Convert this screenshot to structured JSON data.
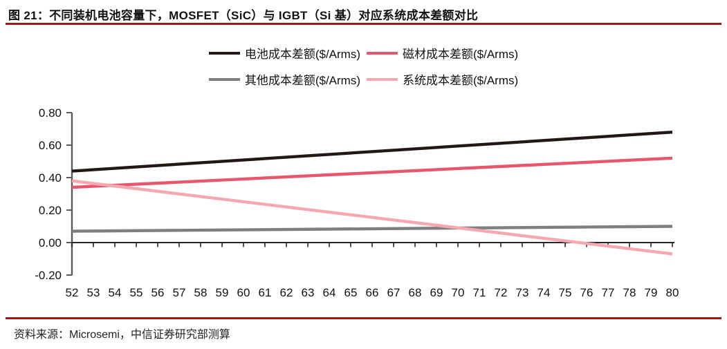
{
  "figure": {
    "title": "图 21：不同装机电池容量下，MOSFET（SiC）与 IGBT（Si 基）对应系统成本差额对比",
    "source": "资料来源：Microsemi，中信证券研究部测算"
  },
  "colors": {
    "rule": "#9c1a16",
    "axis_y": "#595959",
    "axis_x": "#262626",
    "tick_text": "#111111"
  },
  "chart_data": {
    "type": "line",
    "title": "不同装机电池容量下，MOSFET（SiC）与 IGBT（Si 基）对应系统成本差额对比",
    "xlabel": "",
    "ylabel": "",
    "x": [
      52,
      80
    ],
    "x_range": [
      52,
      80
    ],
    "x_ticks": [
      52,
      53,
      54,
      55,
      56,
      57,
      58,
      59,
      60,
      61,
      62,
      63,
      64,
      65,
      66,
      67,
      68,
      69,
      70,
      71,
      72,
      73,
      74,
      75,
      76,
      77,
      78,
      79,
      80
    ],
    "ylim": [
      -0.2,
      0.8
    ],
    "y_ticks": [
      0.8,
      0.6,
      0.4,
      0.2,
      0.0,
      -0.2
    ],
    "y_tick_labels": [
      "0.80",
      "0.60",
      "0.40",
      "0.20",
      "0.00",
      "-0.20"
    ],
    "grid": false,
    "legend_position": "top-center",
    "series": [
      {
        "name": "电池成本差额($/Arms)",
        "key": "battery",
        "color": "#231815",
        "values": [
          0.44,
          0.68
        ]
      },
      {
        "name": "磁材成本差额($/Arms)",
        "key": "magnet",
        "color": "#e8566c",
        "values": [
          0.34,
          0.52
        ]
      },
      {
        "name": "其他成本差额($/Arms)",
        "key": "other",
        "color": "#7f7f7f",
        "values": [
          0.07,
          0.1
        ]
      },
      {
        "name": "系统成本差额($/Arms)",
        "key": "system",
        "color": "#f6a8b0",
        "values": [
          0.38,
          -0.07
        ]
      }
    ]
  }
}
